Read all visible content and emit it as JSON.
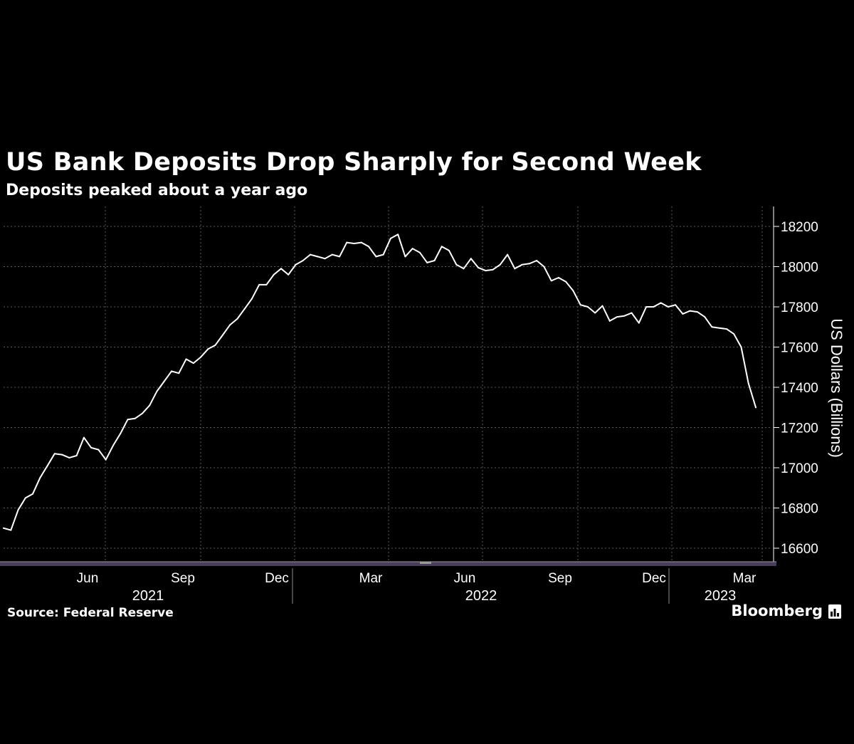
{
  "chart_data": {
    "type": "line",
    "title": "US Bank Deposits Drop Sharply for Second Week",
    "subtitle": "Deposits peaked about a year ago",
    "xlabel": "",
    "ylabel": "US Dollars (Billions)",
    "ylim": [
      16540,
      18260
    ],
    "yticks": [
      16600,
      16800,
      17000,
      17200,
      17400,
      17600,
      17800,
      18000,
      18200
    ],
    "grid": true,
    "y_axis_position": "right",
    "series": [
      {
        "values": [
          16700,
          16690,
          16790,
          16850,
          16870,
          16950,
          17010,
          17070,
          17065,
          17050,
          17060,
          17150,
          17100,
          17090,
          17040,
          17110,
          17170,
          17240,
          17245,
          17270,
          17310,
          17380,
          17430,
          17480,
          17470,
          17540,
          17520,
          17550,
          17590,
          17610,
          17660,
          17710,
          17740,
          17790,
          17840,
          17910,
          17910,
          17960,
          17990,
          17960,
          18010,
          18030,
          18060,
          18050,
          18040,
          18060,
          18050,
          18120,
          18115,
          18120,
          18100,
          18050,
          18060,
          18140,
          18160,
          18050,
          18090,
          18070,
          18020,
          18030,
          18100,
          18080,
          18010,
          17990,
          18040,
          17995,
          17980,
          17985,
          18010,
          18060,
          17990,
          18010,
          18015,
          18030,
          18000,
          17930,
          17945,
          17925,
          17880,
          17810,
          17800,
          17770,
          17805,
          17730,
          17750,
          17755,
          17770,
          17720,
          17800,
          17800,
          17820,
          17800,
          17810,
          17765,
          17780,
          17775,
          17750,
          17700,
          17695,
          17690,
          17665,
          17600,
          17420,
          17300
        ]
      }
    ],
    "x_month_labels": [
      "Jun",
      "Sep",
      "Dec",
      "Mar",
      "Jun",
      "Sep",
      "Dec",
      "Mar"
    ],
    "x_year_labels": [
      "2021",
      "2022",
      "2023"
    ],
    "colors": {
      "background": "#000000",
      "line": "#ffffff",
      "grid": "#5a5a5a",
      "axis_strip": "#4a3f5a"
    }
  },
  "footer": {
    "source": "Source: Federal Reserve",
    "brand": "Bloomberg"
  }
}
